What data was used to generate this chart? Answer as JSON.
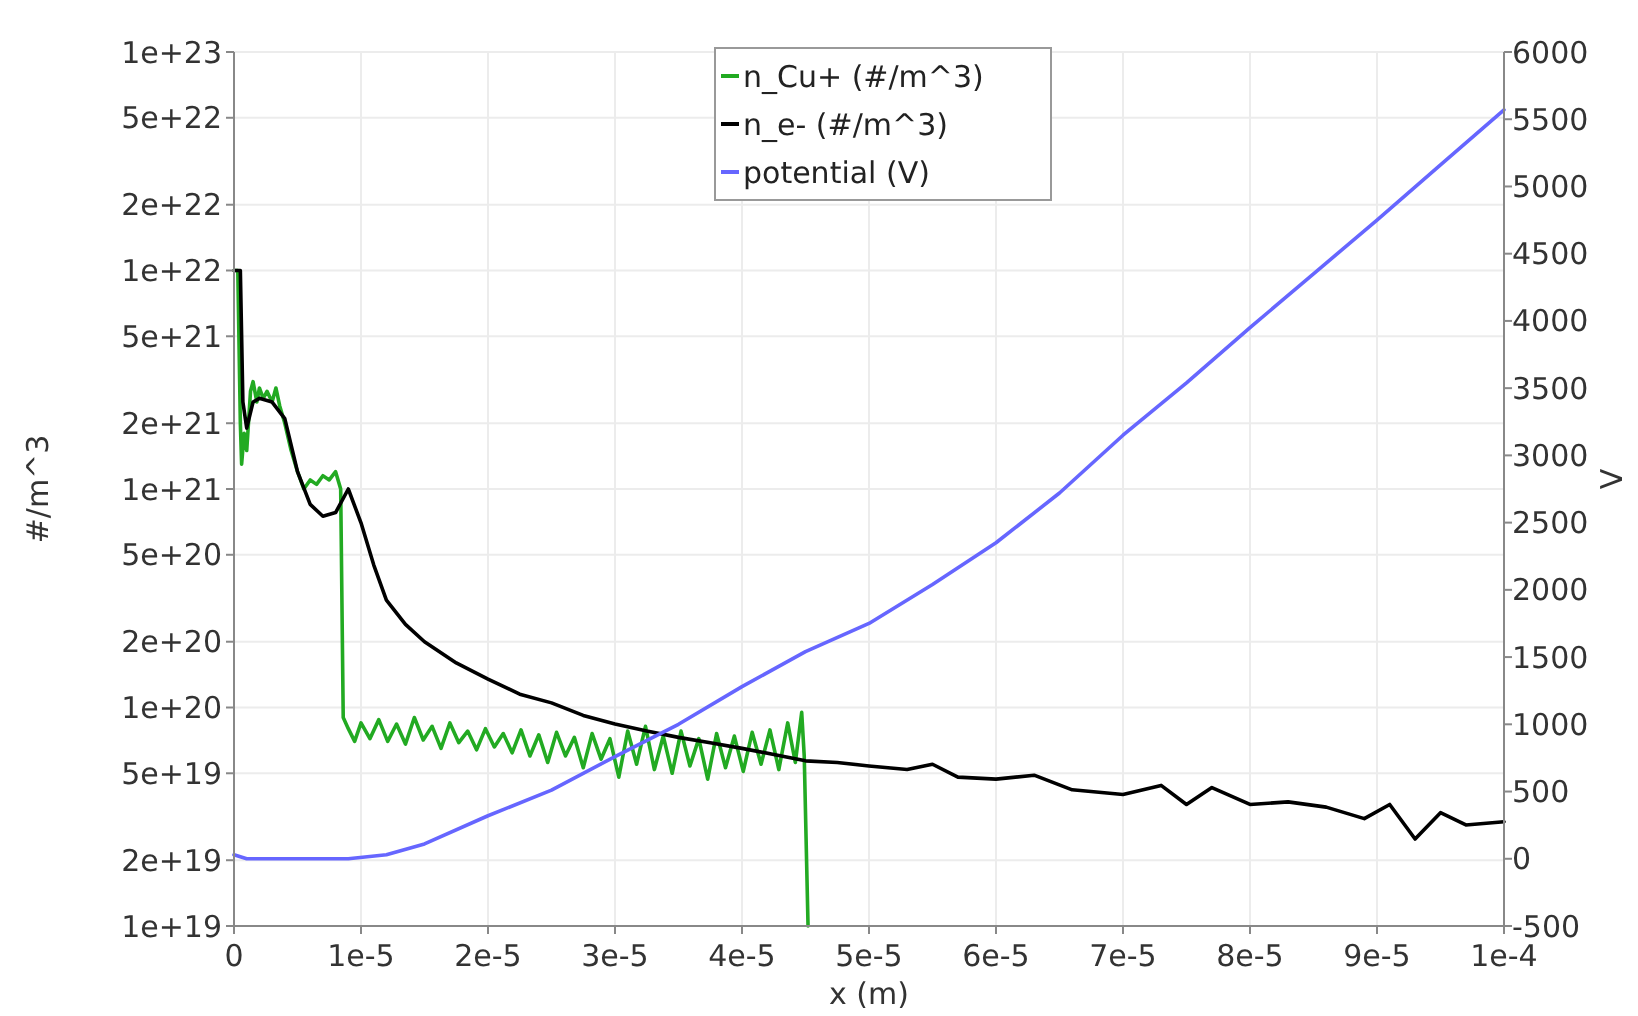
{
  "chart_data": {
    "type": "line",
    "xlabel": "x (m)",
    "ylabel": "#/m^3",
    "y2label": "V",
    "log": "y",
    "grid": true,
    "legend": "top",
    "line_style": "solid",
    "marker": "none",
    "xlim": [
      0,
      0.0001
    ],
    "xticks": [
      0,
      {
        "value": 1e-05,
        "label": "1e-5"
      },
      {
        "value": 2e-05,
        "label": "2e-5"
      },
      {
        "value": 3e-05,
        "label": "3e-5"
      },
      {
        "value": 4e-05,
        "label": "4e-5"
      },
      {
        "value": 5e-05,
        "label": "5e-5"
      },
      {
        "value": 6e-05,
        "label": "6e-5"
      },
      {
        "value": 7e-05,
        "label": "7e-5"
      },
      {
        "value": 8e-05,
        "label": "8e-5"
      },
      {
        "value": 9e-05,
        "label": "9e-5"
      },
      {
        "value": 0.0001,
        "label": "1e-4"
      }
    ],
    "ylim": [
      1e+19,
      1e+23
    ],
    "yticks": [
      {
        "value": 1e+19,
        "label": "1e+19"
      },
      {
        "value": 2e+19,
        "label": "2e+19"
      },
      {
        "value": 5e+19,
        "label": "5e+19"
      },
      {
        "value": 1e+20,
        "label": "1e+20"
      },
      {
        "value": 2e+20,
        "label": "2e+20"
      },
      {
        "value": 5e+20,
        "label": "5e+20"
      },
      {
        "value": 1e+21,
        "label": "1e+21"
      },
      {
        "value": 2e+21,
        "label": "2e+21"
      },
      {
        "value": 5e+21,
        "label": "5e+21"
      },
      {
        "value": 1e+22,
        "label": "1e+22"
      },
      {
        "value": 2e+22,
        "label": "2e+22"
      },
      {
        "value": 5e+22,
        "label": "5e+22"
      },
      {
        "value": 1e+23,
        "label": "1e+23"
      }
    ],
    "y2lim": [
      -500,
      6000
    ],
    "y2ticks": [
      -500,
      0,
      500,
      1000,
      1500,
      2000,
      2500,
      3000,
      3500,
      4000,
      4500,
      5000,
      5500,
      6000
    ],
    "series": [
      {
        "name": "n_Cu+ (#/m^3)",
        "color": "#22aa22",
        "x": [
          0,
          3e-07,
          5e-07,
          6e-07,
          8e-07,
          1e-06,
          1.3e-06,
          1.5e-06,
          1.8e-06,
          2e-06,
          2.3e-06,
          2.6e-06,
          3e-06,
          3.3e-06,
          3.6e-06,
          4e-06,
          4.5e-06,
          5e-06,
          5.5e-06,
          6e-06,
          6.5e-06,
          7e-06,
          7.5e-06,
          8e-06,
          8.4e-06,
          8.6e-06,
          9e-06,
          9.5e-06,
          1e-05,
          1.07e-05,
          1.14e-05,
          1.21e-05,
          1.28e-05,
          1.35e-05,
          1.42e-05,
          1.49e-05,
          1.56e-05,
          1.63e-05,
          1.7e-05,
          1.77e-05,
          1.84e-05,
          1.91e-05,
          1.98e-05,
          2.05e-05,
          2.12e-05,
          2.19e-05,
          2.26e-05,
          2.33e-05,
          2.4e-05,
          2.47e-05,
          2.54e-05,
          2.61e-05,
          2.68e-05,
          2.75e-05,
          2.82e-05,
          2.89e-05,
          2.96e-05,
          3.03e-05,
          3.1e-05,
          3.17e-05,
          3.24e-05,
          3.31e-05,
          3.38e-05,
          3.45e-05,
          3.52e-05,
          3.59e-05,
          3.66e-05,
          3.73e-05,
          3.8e-05,
          3.87e-05,
          3.94e-05,
          4.01e-05,
          4.08e-05,
          4.15e-05,
          4.22e-05,
          4.29e-05,
          4.36e-05,
          4.42e-05,
          4.47e-05,
          4.49e-05,
          4.52e-05
        ],
        "values": [
          1e+22,
          1e+22,
          2e+21,
          1.3e+21,
          1.8e+21,
          1.5e+21,
          2.8e+21,
          3.1e+21,
          2.5e+21,
          2.9e+21,
          2.6e+21,
          2.8e+21,
          2.5e+21,
          2.9e+21,
          2.4e+21,
          2e+21,
          1.5e+21,
          1.2e+21,
          1e+21,
          1.1e+21,
          1.05e+21,
          1.15e+21,
          1.1e+21,
          1.2e+21,
          1e+21,
          9e+19,
          8e+19,
          7e+19,
          8.5e+19,
          7.2e+19,
          8.8e+19,
          7e+19,
          8.4e+19,
          6.8e+19,
          9e+19,
          7.1e+19,
          8.2e+19,
          6.5e+19,
          8.5e+19,
          6.9e+19,
          7.8e+19,
          6.4e+19,
          8e+19,
          6.6e+19,
          7.6e+19,
          6.2e+19,
          7.9e+19,
          6e+19,
          7.5e+19,
          5.6e+19,
          7.7e+19,
          6e+19,
          7.3e+19,
          5.3e+19,
          7.6e+19,
          5.8e+19,
          7.2e+19,
          4.8e+19,
          7.8e+19,
          5.5e+19,
          8.2e+19,
          5.2e+19,
          7.4e+19,
          5e+19,
          7.8e+19,
          5.4e+19,
          7.2e+19,
          4.7e+19,
          7.6e+19,
          5.3e+19,
          7.4e+19,
          5.1e+19,
          7.7e+19,
          5.5e+19,
          7.9e+19,
          5.2e+19,
          8.5e+19,
          5.6e+19,
          9.5e+19,
          6e+19,
          1e+19
        ]
      },
      {
        "name": "n_e- (#/m^3)",
        "color": "#000000",
        "x": [
          0,
          5e-07,
          7e-07,
          1e-06,
          1.5e-06,
          2e-06,
          3e-06,
          4e-06,
          5e-06,
          6e-06,
          7e-06,
          8e-06,
          9e-06,
          1e-05,
          1.1e-05,
          1.2e-05,
          1.35e-05,
          1.5e-05,
          1.75e-05,
          2e-05,
          2.25e-05,
          2.5e-05,
          2.75e-05,
          3e-05,
          3.25e-05,
          3.5e-05,
          3.75e-05,
          4e-05,
          4.25e-05,
          4.5e-05,
          4.75e-05,
          5e-05,
          5.3e-05,
          5.5e-05,
          5.7e-05,
          6e-05,
          6.3e-05,
          6.6e-05,
          7e-05,
          7.3e-05,
          7.5e-05,
          7.7e-05,
          8e-05,
          8.3e-05,
          8.6e-05,
          8.9e-05,
          9.1e-05,
          9.3e-05,
          9.5e-05,
          9.7e-05,
          0.0001
        ],
        "values": [
          1e+22,
          1e+22,
          2.5e+21,
          1.9e+21,
          2.5e+21,
          2.6e+21,
          2.5e+21,
          2.1e+21,
          1.2e+21,
          8.5e+20,
          7.5e+20,
          7.8e+20,
          1e+21,
          7e+20,
          4.5e+20,
          3.1e+20,
          2.4e+20,
          2e+20,
          1.6e+20,
          1.35e+20,
          1.15e+20,
          1.05e+20,
          9.2e+19,
          8.4e+19,
          7.8e+19,
          7.3e+19,
          6.9e+19,
          6.5e+19,
          6.1e+19,
          5.7e+19,
          5.6e+19,
          5.4e+19,
          5.2e+19,
          5.5e+19,
          4.8e+19,
          4.7e+19,
          4.9e+19,
          4.2e+19,
          4e+19,
          4.4e+19,
          3.6e+19,
          4.3e+19,
          3.6e+19,
          3.7e+19,
          3.5e+19,
          3.1e+19,
          3.6e+19,
          2.5e+19,
          3.3e+19,
          2.9e+19,
          3e+19
        ]
      },
      {
        "name": "potential (V)",
        "color": "#6666ff",
        "axis": "y2",
        "x": [
          0,
          1e-06,
          9e-06,
          1.2e-05,
          1.5e-05,
          2e-05,
          2.5e-05,
          3e-05,
          3.5e-05,
          4e-05,
          4.5e-05,
          5e-05,
          5.5e-05,
          6e-05,
          6.5e-05,
          7e-05,
          7.5e-05,
          8e-05,
          8.5e-05,
          9e-05,
          9.5e-05,
          0.0001
        ],
        "values": [
          30,
          0,
          0,
          30,
          110,
          320,
          510,
          760,
          1000,
          1280,
          1540,
          1750,
          2040,
          2350,
          2720,
          3150,
          3540,
          3950,
          4350,
          4750,
          5160,
          5570
        ]
      }
    ]
  }
}
